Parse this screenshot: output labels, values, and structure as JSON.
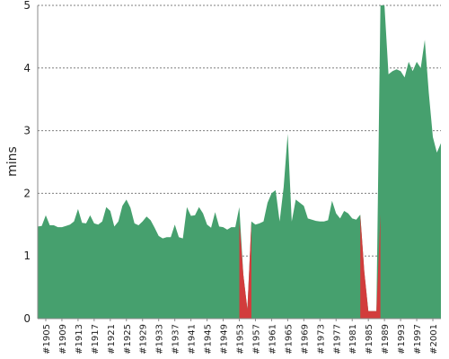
{
  "chart_data": {
    "type": "area",
    "title": "",
    "xlabel": "",
    "ylabel": "mins",
    "ylim": [
      0,
      5
    ],
    "y_ticks": [
      "0",
      "1",
      "2",
      "3",
      "4",
      "5"
    ],
    "grid": true,
    "x_tick_labels": [
      "#1905",
      "#1909",
      "#1913",
      "#1917",
      "#1921",
      "#1925",
      "#1929",
      "#1933",
      "#1937",
      "#1941",
      "#1945",
      "#1949",
      "#1953",
      "#1957",
      "#1961",
      "#1965",
      "#1969",
      "#1973",
      "#1977",
      "#1981",
      "#1985",
      "#1989",
      "#1993",
      "#1997",
      "#2001"
    ],
    "colors": {
      "positive": "#46a06e",
      "highlight": "#d23c3c"
    },
    "series": [
      {
        "x": [
          1903,
          1904,
          1905,
          1906,
          1907,
          1908,
          1909,
          1910,
          1911,
          1912,
          1913,
          1914,
          1915,
          1916,
          1917,
          1918,
          1919,
          1920,
          1921,
          1922,
          1923,
          1924,
          1925,
          1926,
          1927,
          1928,
          1929,
          1930,
          1931,
          1932,
          1933,
          1934,
          1935,
          1936,
          1937,
          1938,
          1939,
          1940,
          1941,
          1942,
          1943,
          1944,
          1945,
          1946,
          1947,
          1948,
          1949,
          1950,
          1951,
          1952,
          1953,
          1954,
          1955,
          1956,
          1957,
          1958,
          1959,
          1960,
          1961,
          1962,
          1963,
          1964,
          1965,
          1966,
          1967,
          1968,
          1969,
          1970,
          1971,
          1972,
          1973,
          1974,
          1975,
          1976,
          1977,
          1978,
          1979,
          1980,
          1981,
          1982,
          1983,
          1984,
          1985,
          1986,
          1987,
          1988,
          1989,
          1990,
          1991,
          1992,
          1993,
          1994,
          1995,
          1996,
          1997,
          1998,
          1999,
          2000,
          2001,
          2002,
          2003
        ],
        "y": [
          1.47,
          1.48,
          1.65,
          1.49,
          1.49,
          1.46,
          1.46,
          1.48,
          1.5,
          1.55,
          1.75,
          1.53,
          1.52,
          1.65,
          1.52,
          1.5,
          1.55,
          1.78,
          1.72,
          1.47,
          1.55,
          1.8,
          1.9,
          1.77,
          1.52,
          1.49,
          1.55,
          1.63,
          1.57,
          1.45,
          1.32,
          1.28,
          1.3,
          1.3,
          1.5,
          1.3,
          1.28,
          1.78,
          1.64,
          1.65,
          1.78,
          1.68,
          1.5,
          1.45,
          1.7,
          1.47,
          1.46,
          1.42,
          1.46,
          1.46,
          1.78,
          0.7,
          0.15,
          1.55,
          1.5,
          1.52,
          1.55,
          1.85,
          2.0,
          2.05,
          1.55,
          2.1,
          2.95,
          1.55,
          1.9,
          1.85,
          1.8,
          1.6,
          1.58,
          1.56,
          1.55,
          1.55,
          1.57,
          1.88,
          1.68,
          1.6,
          1.72,
          1.68,
          1.6,
          1.58,
          1.66,
          0.75,
          0.12,
          0.12,
          0.12,
          5.0,
          5.0,
          3.9,
          3.95,
          3.98,
          3.95,
          3.85,
          4.1,
          3.95,
          4.1,
          4.0,
          4.45,
          3.6,
          2.9,
          2.65,
          2.8
        ]
      }
    ]
  }
}
